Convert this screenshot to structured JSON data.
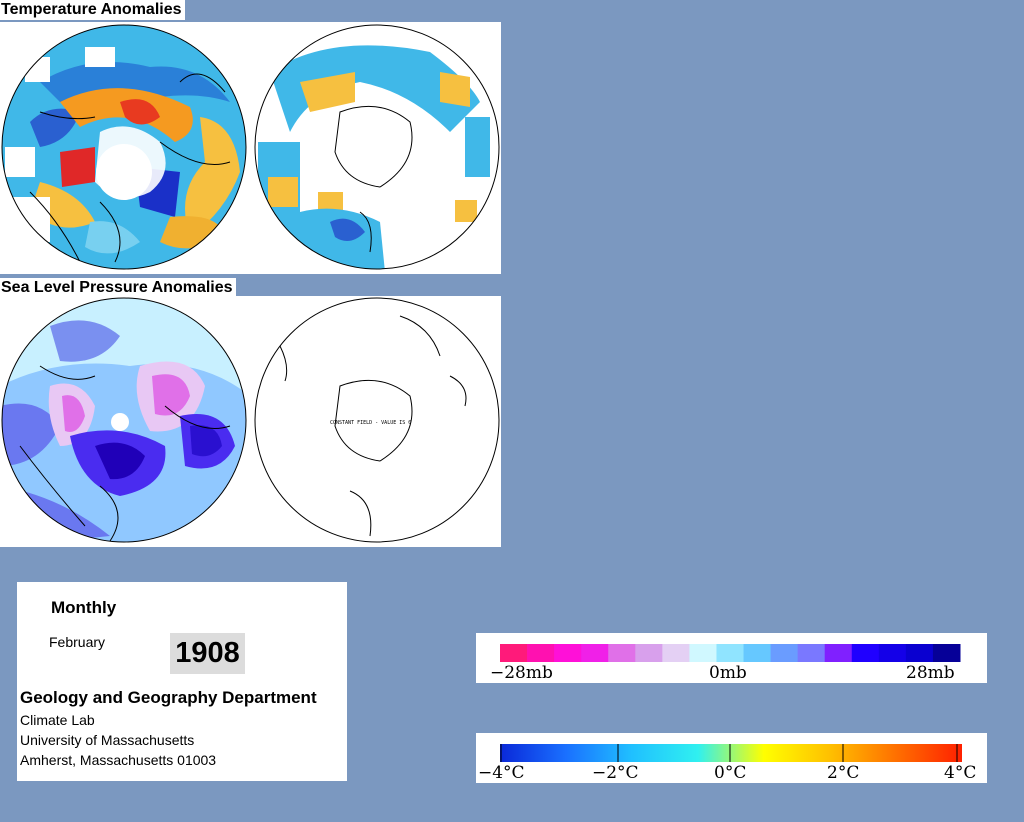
{
  "sections": {
    "temperature_title": "Temperature Anomalies",
    "pressure_title": "Sea Level Pressure Anomalies"
  },
  "maps": {
    "slp_south_note": "CONSTANT FIELD - VALUE IS 0"
  },
  "info": {
    "frequency": "Monthly",
    "month": "February",
    "year": "1908",
    "department": "Geology and Geography Department",
    "lab": "Climate Lab",
    "university": "University of Massachusetts",
    "address": "Amherst, Massachusetts 01003"
  },
  "legends": {
    "pressure": {
      "unit": "mb",
      "labels": [
        "−28mb",
        "0mb",
        "28mb"
      ],
      "colors": [
        "#ff1a7a",
        "#ff11b0",
        "#ff10d8",
        "#f020e8",
        "#e070e8",
        "#d8a0ec",
        "#e4d0f4",
        "#d0f8ff",
        "#90e4ff",
        "#66c8ff",
        "#6a9cff",
        "#7a78ff",
        "#8020ff",
        "#2000ff",
        "#1400e8",
        "#0a00d0",
        "#060098"
      ]
    },
    "temperature": {
      "unit": "°C",
      "labels": [
        "−4°C",
        "−2°C",
        "0°C",
        "2°C",
        "4°C"
      ],
      "gradient": [
        "#0a28d8",
        "#1a70ff",
        "#20c0ff",
        "#30f0f0",
        "#ffff00",
        "#ffc000",
        "#ff7000",
        "#ff2000"
      ]
    }
  }
}
